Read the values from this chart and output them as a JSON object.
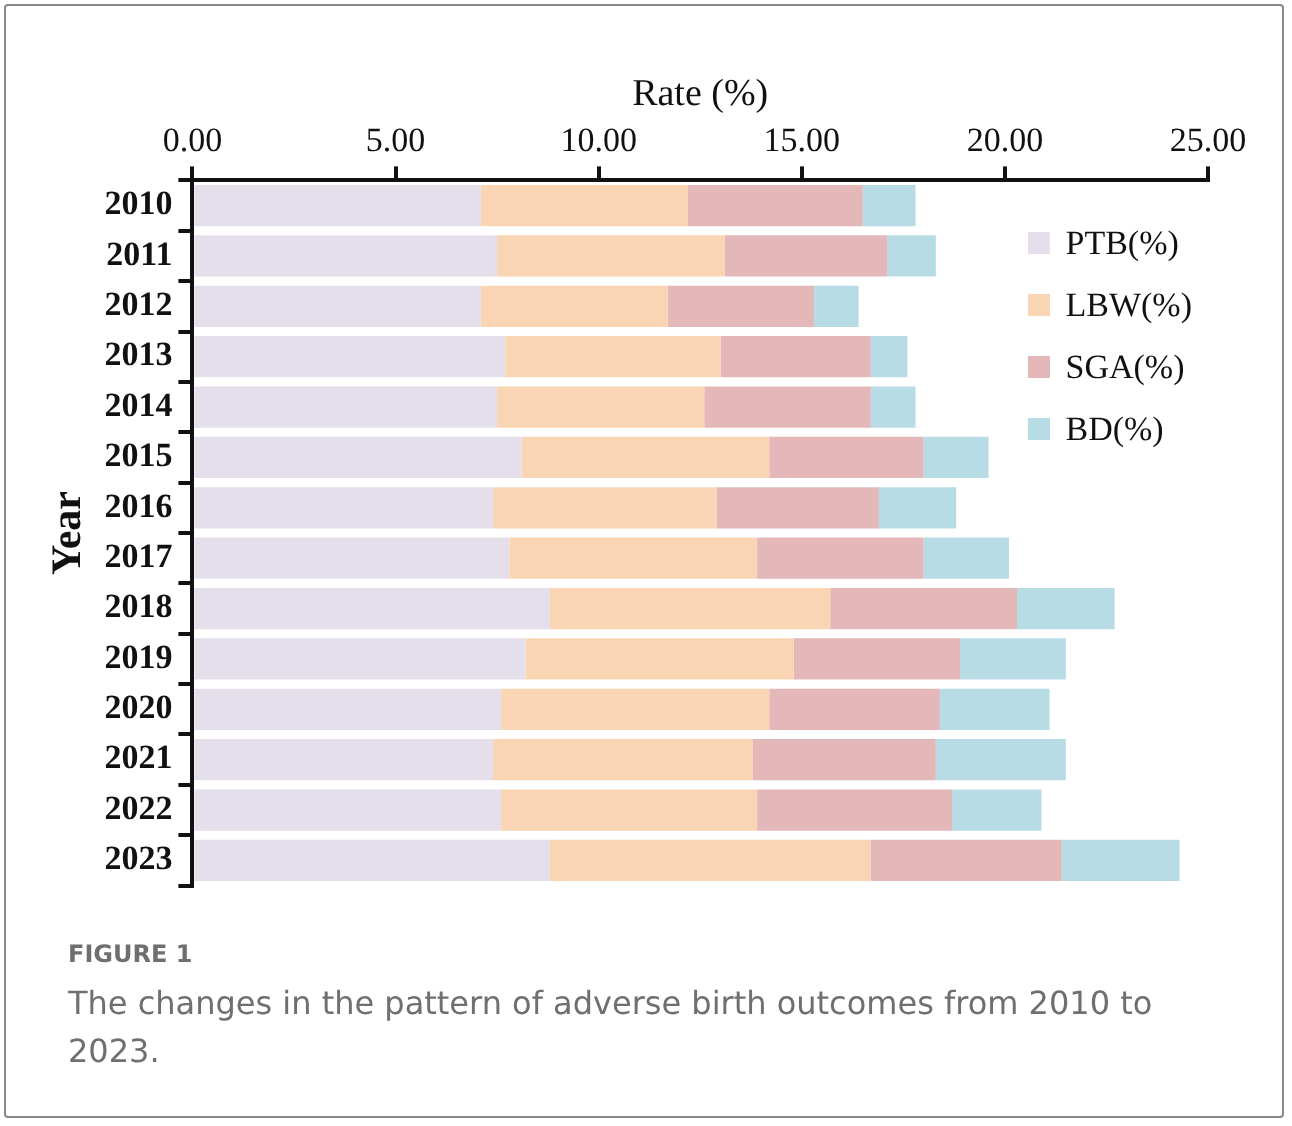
{
  "chart_data": {
    "type": "bar",
    "orientation": "horizontal",
    "stacked": true,
    "xlabel": "Rate (%)",
    "ylabel": "Year",
    "categories": [
      "2010",
      "2011",
      "2012",
      "2013",
      "2014",
      "2015",
      "2016",
      "2017",
      "2018",
      "2019",
      "2020",
      "2021",
      "2022",
      "2023"
    ],
    "series": [
      {
        "name": "PTB(%)",
        "color": "#e4dfea",
        "values": [
          7.1,
          7.5,
          7.1,
          7.7,
          7.5,
          8.1,
          7.4,
          7.8,
          8.8,
          8.2,
          7.6,
          7.4,
          7.6,
          8.8
        ]
      },
      {
        "name": "LBW(%)",
        "color": "#fad5b4",
        "values": [
          5.1,
          5.6,
          4.6,
          5.3,
          5.1,
          6.1,
          5.5,
          6.1,
          6.9,
          6.6,
          6.6,
          6.4,
          6.3,
          7.9
        ]
      },
      {
        "name": "SGA(%)",
        "color": "#e4b8b9",
        "values": [
          4.3,
          4.0,
          3.6,
          3.7,
          4.1,
          3.8,
          4.0,
          4.1,
          4.6,
          4.1,
          4.2,
          4.5,
          4.8,
          4.7
        ]
      },
      {
        "name": "BD(%)",
        "color": "#b7dce5",
        "values": [
          1.3,
          1.2,
          1.1,
          0.9,
          1.1,
          1.6,
          1.9,
          2.1,
          2.4,
          2.6,
          2.7,
          3.2,
          2.2,
          2.9
        ]
      }
    ],
    "xlim": [
      0,
      25
    ],
    "xticks": [
      {
        "value": 0,
        "label": "0.00"
      },
      {
        "value": 5,
        "label": "5.00"
      },
      {
        "value": 10,
        "label": "10.00"
      },
      {
        "value": 15,
        "label": "15.00"
      },
      {
        "value": 20,
        "label": "20.00"
      },
      {
        "value": 25,
        "label": "25.00"
      }
    ],
    "grid": false,
    "legend": "right",
    "annotations": [
      "FIGURE 1",
      "The changes in the pattern of adverse birth outcomes from 2010 to 2023."
    ]
  }
}
